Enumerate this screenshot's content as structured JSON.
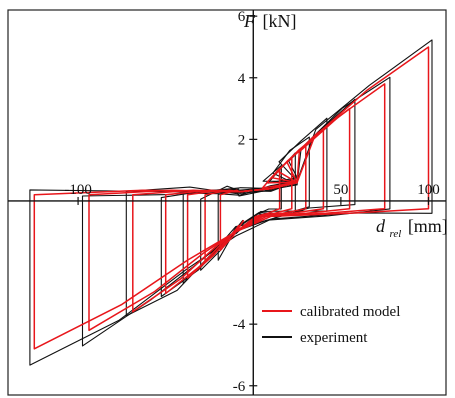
{
  "chart_data": {
    "type": "line",
    "title": "",
    "x_ticks": [
      {
        "value": -100,
        "label": "-100"
      },
      {
        "value": 50,
        "label": "50"
      },
      {
        "value": 100,
        "label": "100"
      }
    ],
    "y_ticks": [
      {
        "value": 6,
        "label": "6"
      },
      {
        "value": 4,
        "label": "4"
      },
      {
        "value": 2,
        "label": "2"
      },
      {
        "value": -4,
        "label": "-4"
      },
      {
        "value": -6,
        "label": "-6"
      }
    ],
    "xlim": [
      -140,
      110
    ],
    "ylim": [
      -6.3,
      6.2
    ],
    "xlabel": {
      "symbol": "d",
      "subscript": "rel",
      "unit": "[mm]"
    },
    "ylabel": {
      "symbol": "F",
      "unit": "[kN]"
    },
    "legend_position": "bottom-right",
    "colors": {
      "model": "#e8161b",
      "experiment": "#111111"
    },
    "series": [
      {
        "name": "calibrated model",
        "color": "#e8161b",
        "loops": [
          {
            "amp": 100,
            "fmax": 5.0,
            "fmin": -4.8
          },
          {
            "amp": 75,
            "fmax": 3.8,
            "fmin": -4.2
          },
          {
            "amp": 55,
            "fmax": 3.0,
            "fmin": -3.6
          },
          {
            "amp": 40,
            "fmax": 2.3,
            "fmin": -3.0
          },
          {
            "amp": 30,
            "fmax": 1.8,
            "fmin": -2.5
          },
          {
            "amp": 22,
            "fmax": 1.4,
            "fmin": -2.0
          },
          {
            "amp": 15,
            "fmax": 1.0,
            "fmin": -1.6
          }
        ]
      },
      {
        "name": "experiment",
        "color": "#111111",
        "loops": [
          {
            "amp": 102,
            "fmax": 5.2,
            "fmin": -5.3
          },
          {
            "amp": 78,
            "fmax": 4.0,
            "fmin": -4.6
          },
          {
            "amp": 58,
            "fmax": 3.3,
            "fmin": -3.9
          },
          {
            "amp": 42,
            "fmax": 2.7,
            "fmin": -3.2
          },
          {
            "amp": 32,
            "fmax": 2.1,
            "fmin": -2.7
          },
          {
            "amp": 24,
            "fmax": 1.6,
            "fmin": -2.2
          },
          {
            "amp": 16,
            "fmax": 1.2,
            "fmin": -1.8
          }
        ]
      }
    ]
  }
}
